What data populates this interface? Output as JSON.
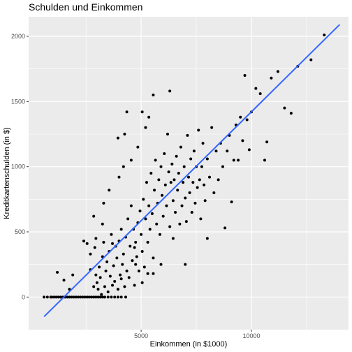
{
  "chart_data": {
    "type": "scatter",
    "title": "Schulden und Einkommen",
    "xlabel": "Einkommen (in $1000)",
    "ylabel": "Kreditkartenschulden (in $)",
    "xlim": [
      -100,
      14400
    ],
    "ylim": [
      -250,
      2150
    ],
    "x_ticks": [
      5000,
      10000
    ],
    "x_tick_labels": [
      "5000",
      "10000"
    ],
    "y_ticks": [
      0,
      500,
      1000,
      1500,
      2000
    ],
    "y_tick_labels": [
      "0",
      "500",
      "1000",
      "1500",
      "2000"
    ],
    "grid": true,
    "legend": "none",
    "colors": {
      "panel": "#EBEBEB",
      "grid": "#FFFFFF",
      "points": "#000000",
      "fit_line": "#3366FF"
    },
    "fit_line": {
      "x": [
        600,
        14000
      ],
      "y": [
        -150,
        2090
      ]
    },
    "points": [
      [
        600,
        0
      ],
      [
        750,
        0
      ],
      [
        900,
        0
      ],
      [
        950,
        0
      ],
      [
        1050,
        0
      ],
      [
        1150,
        0
      ],
      [
        1250,
        0
      ],
      [
        1350,
        0
      ],
      [
        1450,
        0
      ],
      [
        1550,
        0
      ],
      [
        1650,
        0
      ],
      [
        1750,
        0
      ],
      [
        1850,
        0
      ],
      [
        1950,
        0
      ],
      [
        2050,
        0
      ],
      [
        2150,
        0
      ],
      [
        2250,
        0
      ],
      [
        2350,
        0
      ],
      [
        2450,
        0
      ],
      [
        2550,
        0
      ],
      [
        2650,
        0
      ],
      [
        2750,
        0
      ],
      [
        2850,
        0
      ],
      [
        2950,
        0
      ],
      [
        3050,
        0
      ],
      [
        3150,
        0
      ],
      [
        3250,
        0
      ],
      [
        3350,
        0
      ],
      [
        3500,
        0
      ],
      [
        3650,
        0
      ],
      [
        3800,
        0
      ],
      [
        3950,
        0
      ],
      [
        4100,
        0
      ],
      [
        4300,
        0
      ],
      [
        1200,
        190
      ],
      [
        1500,
        130
      ],
      [
        1750,
        60
      ],
      [
        1900,
        170
      ],
      [
        2400,
        430
      ],
      [
        2550,
        410
      ],
      [
        2700,
        330
      ],
      [
        2700,
        210
      ],
      [
        2850,
        80
      ],
      [
        2900,
        380
      ],
      [
        2950,
        170
      ],
      [
        3000,
        110
      ],
      [
        3050,
        60
      ],
      [
        3100,
        230
      ],
      [
        3150,
        150
      ],
      [
        3200,
        20
      ],
      [
        3250,
        310
      ],
      [
        3300,
        420
      ],
      [
        3350,
        80
      ],
      [
        3400,
        200
      ],
      [
        3450,
        270
      ],
      [
        3500,
        40
      ],
      [
        3550,
        350
      ],
      [
        3600,
        160
      ],
      [
        3650,
        480
      ],
      [
        3700,
        90
      ],
      [
        3750,
        240
      ],
      [
        3800,
        120
      ],
      [
        3850,
        390
      ],
      [
        3900,
        300
      ],
      [
        3950,
        60
      ],
      [
        4000,
        430
      ],
      [
        4050,
        170
      ],
      [
        4100,
        520
      ],
      [
        4150,
        250
      ],
      [
        4200,
        330
      ],
      [
        4250,
        80
      ],
      [
        4300,
        460
      ],
      [
        4350,
        200
      ],
      [
        4400,
        600
      ],
      [
        4450,
        150
      ],
      [
        4500,
        390
      ],
      [
        4550,
        700
      ],
      [
        4600,
        280
      ],
      [
        4650,
        520
      ],
      [
        4700,
        90
      ],
      [
        4750,
        420
      ],
      [
        4800,
        310
      ],
      [
        4850,
        570
      ],
      [
        4900,
        200
      ],
      [
        4950,
        660
      ],
      [
        5000,
        480
      ],
      [
        5050,
        350
      ],
      [
        5100,
        750
      ],
      [
        5150,
        230
      ],
      [
        5200,
        600
      ],
      [
        5250,
        880
      ],
      [
        5300,
        420
      ],
      [
        5350,
        700
      ],
      [
        5400,
        520
      ],
      [
        5450,
        950
      ],
      [
        5500,
        640
      ],
      [
        5550,
        300
      ],
      [
        5600,
        820
      ],
      [
        5650,
        1050
      ],
      [
        5700,
        560
      ],
      [
        5750,
        720
      ],
      [
        5800,
        900
      ],
      [
        5850,
        480
      ],
      [
        5900,
        1000
      ],
      [
        5950,
        780
      ],
      [
        6000,
        620
      ],
      [
        6050,
        1100
      ],
      [
        6100,
        860
      ],
      [
        6150,
        700
      ],
      [
        6200,
        1250
      ],
      [
        6250,
        960
      ],
      [
        6300,
        540
      ],
      [
        6350,
        880
      ],
      [
        6400,
        1020
      ],
      [
        6450,
        740
      ],
      [
        6500,
        900
      ],
      [
        6550,
        650
      ],
      [
        6600,
        1080
      ],
      [
        6650,
        820
      ],
      [
        6700,
        950
      ],
      [
        6750,
        560
      ],
      [
        6800,
        1150
      ],
      [
        6850,
        700
      ],
      [
        6900,
        880
      ],
      [
        6950,
        1000
      ],
      [
        7000,
        760
      ],
      [
        7050,
        580
      ],
      [
        7100,
        1240
      ],
      [
        7150,
        920
      ],
      [
        7200,
        800
      ],
      [
        7250,
        1060
      ],
      [
        7300,
        650
      ],
      [
        7350,
        880
      ],
      [
        7400,
        1120
      ],
      [
        7450,
        720
      ],
      [
        7500,
        1000
      ],
      [
        7550,
        840
      ],
      [
        7600,
        1280
      ],
      [
        7650,
        900
      ],
      [
        7700,
        600
      ],
      [
        7750,
        1000
      ],
      [
        7800,
        1180
      ],
      [
        7850,
        860
      ],
      [
        7900,
        740
      ],
      [
        8000,
        1060
      ],
      [
        8100,
        920
      ],
      [
        8200,
        1300
      ],
      [
        8300,
        800
      ],
      [
        8400,
        1120
      ],
      [
        8500,
        900
      ],
      [
        8600,
        1180
      ],
      [
        8700,
        1000
      ],
      [
        8800,
        530
      ],
      [
        8900,
        1120
      ],
      [
        9000,
        1240
      ],
      [
        9100,
        730
      ],
      [
        9200,
        1050
      ],
      [
        9300,
        1320
      ],
      [
        9400,
        1050
      ],
      [
        9500,
        1380
      ],
      [
        9600,
        1200
      ],
      [
        9700,
        1700
      ],
      [
        9800,
        1360
      ],
      [
        9900,
        1130
      ],
      [
        10000,
        1420
      ],
      [
        10200,
        1600
      ],
      [
        10400,
        1560
      ],
      [
        10600,
        1050
      ],
      [
        10700,
        1190
      ],
      [
        10900,
        1680
      ],
      [
        11200,
        1730
      ],
      [
        11500,
        1450
      ],
      [
        11800,
        1410
      ],
      [
        12100,
        1770
      ],
      [
        12700,
        1820
      ],
      [
        13300,
        2010
      ],
      [
        3950,
        1220
      ],
      [
        4250,
        1250
      ],
      [
        4550,
        1050
      ],
      [
        4850,
        1150
      ],
      [
        5050,
        1420
      ],
      [
        5200,
        1300
      ],
      [
        5350,
        1380
      ],
      [
        5550,
        1550
      ],
      [
        6300,
        1580
      ],
      [
        4350,
        1420
      ],
      [
        4000,
        920
      ],
      [
        3550,
        820
      ],
      [
        2950,
        450
      ],
      [
        3300,
        720
      ],
      [
        2850,
        620
      ],
      [
        3250,
        560
      ],
      [
        4200,
        1000
      ],
      [
        4750,
        250
      ],
      [
        5900,
        250
      ],
      [
        6450,
        450
      ],
      [
        7000,
        250
      ],
      [
        8000,
        450
      ],
      [
        5550,
        180
      ],
      [
        4700,
        380
      ],
      [
        4100,
        140
      ],
      [
        3700,
        410
      ],
      [
        5300,
        180
      ],
      [
        5050,
        110
      ]
    ]
  }
}
